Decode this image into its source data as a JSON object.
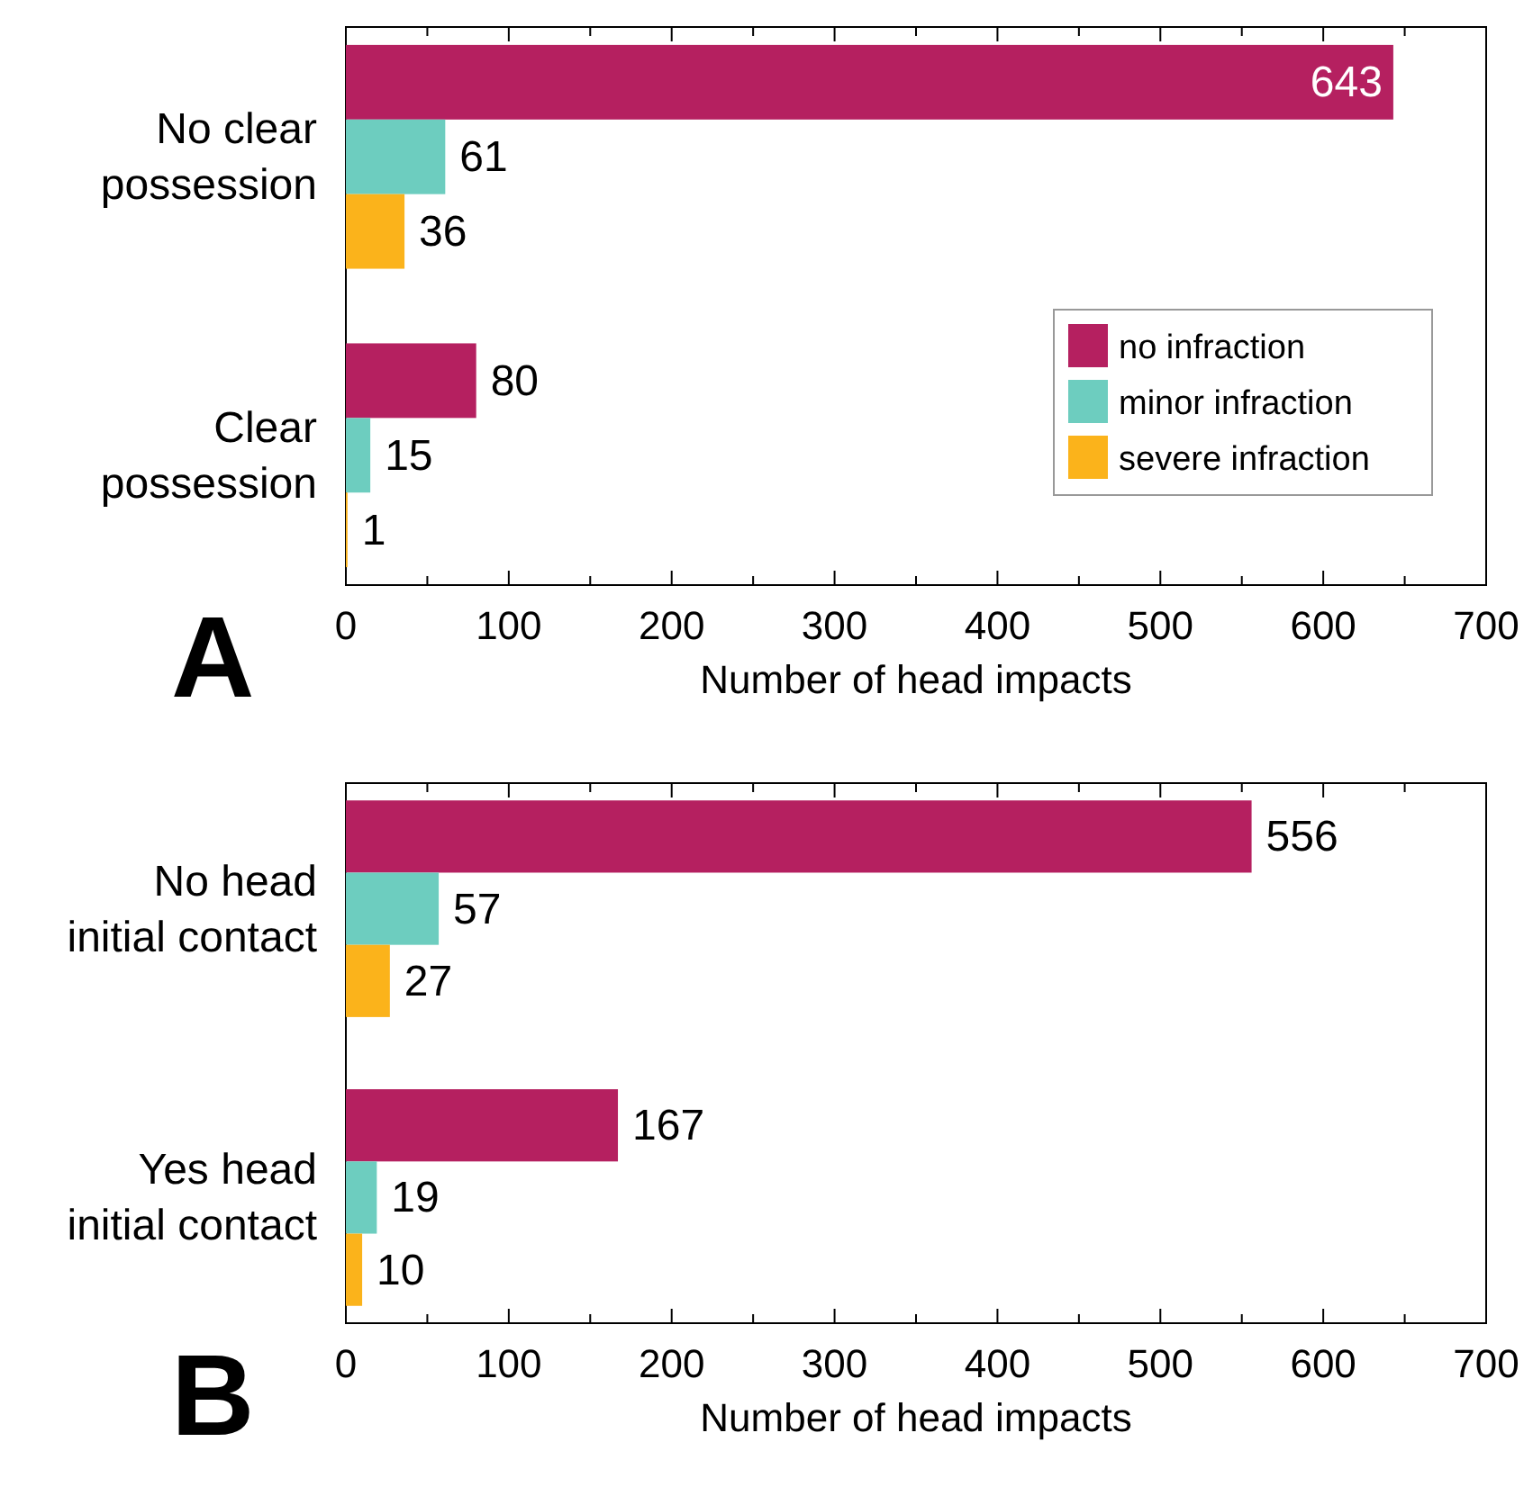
{
  "chart_data": [
    {
      "type": "bar",
      "orientation": "horizontal",
      "categories": [
        "No clear\npossession",
        "Clear\npossession"
      ],
      "series": [
        {
          "name": "no infraction",
          "color": "#b52060",
          "values": [
            643,
            80
          ]
        },
        {
          "name": "minor infraction",
          "color": "#6dcdbf",
          "values": [
            61,
            15
          ]
        },
        {
          "name": "severe infraction",
          "color": "#fbb31b",
          "values": [
            36,
            1
          ]
        }
      ],
      "xlabel": "Number of head impacts",
      "xlim": [
        0,
        700
      ],
      "xticks": [
        0,
        {
          "value": 50,
          "label": null
        },
        100,
        {
          "value": 150,
          "label": null
        },
        200,
        {
          "value": 250,
          "label": null
        },
        300,
        {
          "value": 350,
          "label": null
        },
        400,
        {
          "value": 450,
          "label": null
        },
        500,
        {
          "value": 550,
          "label": null
        },
        600,
        {
          "value": 650,
          "label": null
        },
        700
      ],
      "data_labels": true,
      "legend": "right",
      "grid": false,
      "annotations": [
        "A"
      ]
    },
    {
      "type": "bar",
      "orientation": "horizontal",
      "categories": [
        "No head\ninitial contact",
        "Yes head\ninitial contact"
      ],
      "series": [
        {
          "color": "#b52060",
          "values": [
            556,
            167
          ]
        },
        {
          "color": "#6dcdbf",
          "values": [
            57,
            19
          ]
        },
        {
          "color": "#fbb31b",
          "values": [
            27,
            10
          ]
        }
      ],
      "xlabel": "Number of head impacts",
      "xlim": [
        0,
        700
      ],
      "xticks": [
        0,
        {
          "value": 50,
          "label": null
        },
        100,
        {
          "value": 150,
          "label": null
        },
        200,
        {
          "value": 250,
          "label": null
        },
        300,
        {
          "value": 350,
          "label": null
        },
        400,
        {
          "value": 450,
          "label": null
        },
        500,
        {
          "value": 550,
          "label": null
        },
        600,
        {
          "value": 650,
          "label": null
        },
        700
      ],
      "data_labels": true,
      "legend": false,
      "grid": false,
      "annotations": [
        "B"
      ]
    }
  ]
}
